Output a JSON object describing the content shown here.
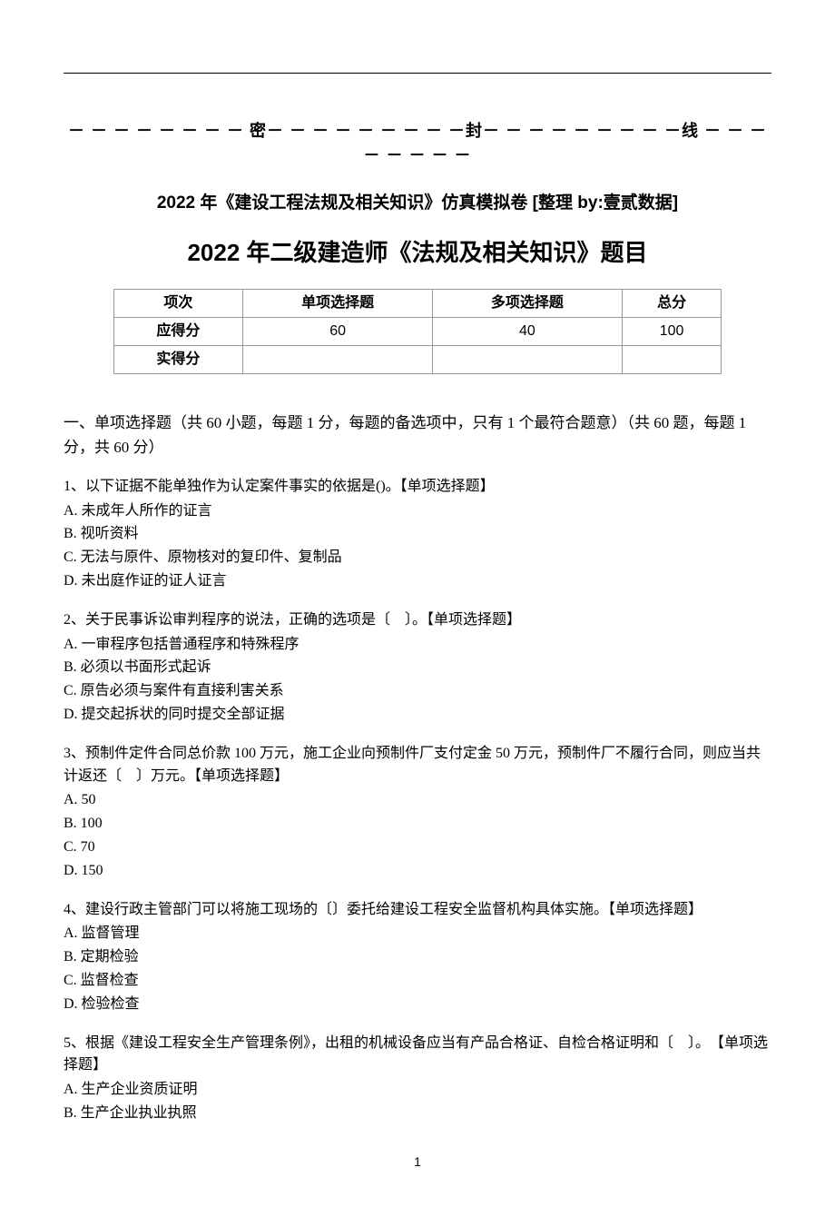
{
  "seal_line": "－ － － － － － － － 密－ － － － － － － － －封－ － － － － － － － －线 － － － － － － － －",
  "subtitle": "2022 年《建设工程法规及相关知识》仿真模拟卷 [整理 by:壹贰数据]",
  "title": "2022 年二级建造师《法规及相关知识》题目",
  "score_table": {
    "headers": [
      "项次",
      "单项选择题",
      "多项选择题",
      "总分"
    ],
    "rows": [
      [
        "应得分",
        "60",
        "40",
        "100"
      ],
      [
        "实得分",
        "",
        "",
        ""
      ]
    ]
  },
  "section1_heading": "一、单项选择题（共 60 小题，每题 1 分，每题的备选项中，只有 1 个最符合题意）（共 60 题，每题 1 分，共 60 分）",
  "questions": [
    {
      "stem": "1、以下证据不能单独作为认定案件事实的依据是()。【单项选择题】",
      "options": [
        "A. 未成年人所作的证言",
        "B. 视听资料",
        "C. 无法与原件、原物核对的复印件、复制品",
        "D. 未出庭作证的证人证言"
      ]
    },
    {
      "stem": "2、关于民事诉讼审判程序的说法，正确的选项是〔　〕。【单项选择题】",
      "options": [
        "A. 一审程序包括普通程序和特殊程序",
        "B. 必须以书面形式起诉",
        "C. 原告必须与案件有直接利害关系",
        "D. 提交起拆状的同时提交全部证据"
      ]
    },
    {
      "stem": "3、预制件定件合同总价款 100 万元，施工企业向预制件厂支付定金 50 万元，预制件厂不履行合同，则应当共计返还〔　〕万元。【单项选择题】",
      "options": [
        "A. 50",
        "B. 100",
        "C. 70",
        "D. 150"
      ]
    },
    {
      "stem": "4、建设行政主管部门可以将施工现场的〔〕委托给建设工程安全监督机构具体实施。【单项选择题】",
      "options": [
        "A. 监督管理",
        "B. 定期检验",
        "C. 监督检查",
        "D. 检验检查"
      ]
    },
    {
      "stem": "5、根据《建设工程安全生产管理条例》，出租的机械设备应当有产品合格证、自检合格证明和〔　〕。　【单项选择题】",
      "options": [
        "A. 生产企业资质证明",
        "B. 生产企业执业执照"
      ]
    }
  ],
  "page_number": "1",
  "colors": {
    "text": "#000000",
    "background": "#ffffff",
    "table_border": "#999999"
  }
}
